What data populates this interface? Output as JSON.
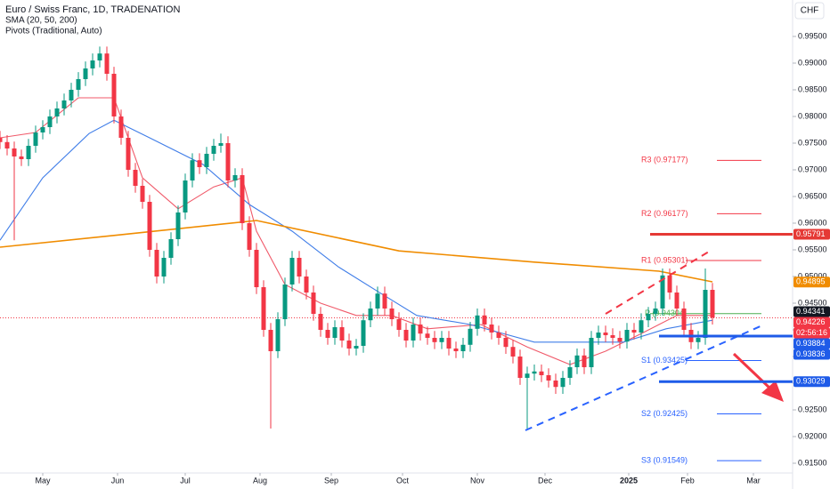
{
  "chart_data": {
    "type": "candlestick",
    "title": "Euro / Swiss Franc, 1D, TRADENATION",
    "indicators": [
      "SMA (20, 50, 200)",
      "Pivots (Traditional, Auto)"
    ],
    "currency": "CHF",
    "up_color": "#089981",
    "down_color": "#f23645",
    "xlim": [
      0,
      222.5
    ],
    "ylim": [
      0.91317,
      1.00183
    ],
    "xticks": [
      {
        "value": 12,
        "label": "May"
      },
      {
        "value": 33,
        "label": "Jun"
      },
      {
        "value": 52,
        "label": "Jul"
      },
      {
        "value": 73,
        "label": "Aug"
      },
      {
        "value": 93,
        "label": "Sep"
      },
      {
        "value": 113,
        "label": "Oct"
      },
      {
        "value": 134,
        "label": "Nov"
      },
      {
        "value": 153,
        "label": "Dec"
      },
      {
        "value": 176.5,
        "label": "2025"
      },
      {
        "value": 193,
        "label": "Feb"
      },
      {
        "value": 211.5,
        "label": "Mar"
      }
    ],
    "yticks": [
      {
        "value": 0.995,
        "label": "0.99500"
      },
      {
        "value": 0.99,
        "label": "0.99000"
      },
      {
        "value": 0.985,
        "label": "0.98500"
      },
      {
        "value": 0.98,
        "label": "0.98000"
      },
      {
        "value": 0.975,
        "label": "0.97500"
      },
      {
        "value": 0.97,
        "label": "0.97000"
      },
      {
        "value": 0.965,
        "label": "0.96500"
      },
      {
        "value": 0.96,
        "label": "0.96000"
      },
      {
        "value": 0.955,
        "label": "0.95500"
      },
      {
        "value": 0.95,
        "label": "0.95000"
      },
      {
        "value": 0.945,
        "label": "0.94500"
      },
      {
        "value": 0.94,
        "label": "0.94000"
      },
      {
        "value": 0.935,
        "label": "0.93500"
      },
      {
        "value": 0.93,
        "label": "0.93000"
      },
      {
        "value": 0.925,
        "label": "0.92500"
      },
      {
        "value": 0.92,
        "label": "0.92000"
      },
      {
        "value": 0.915,
        "label": "0.91500"
      }
    ],
    "x": [
      0,
      2,
      4,
      6,
      8,
      10,
      12,
      14,
      16,
      18,
      20,
      22,
      24,
      26,
      28,
      30,
      32,
      34,
      36,
      38,
      40,
      42,
      44,
      46,
      48,
      50,
      52,
      54,
      56,
      58,
      60,
      62,
      64,
      66,
      68,
      70,
      72,
      74,
      76,
      78,
      80,
      82,
      84,
      86,
      88,
      90,
      92,
      94,
      96,
      98,
      100,
      102,
      104,
      106,
      108,
      110,
      112,
      114,
      116,
      118,
      120,
      122,
      124,
      126,
      128,
      130,
      132,
      134,
      136,
      138,
      140,
      142,
      144,
      146,
      148,
      150,
      152,
      154,
      156,
      158,
      160,
      162,
      164,
      166,
      168,
      170,
      172,
      174,
      176,
      178,
      180,
      182,
      184,
      186,
      188,
      190,
      192,
      194,
      196,
      198,
      200
    ],
    "ohlc": [
      [
        0.976,
        0.9773,
        0.9739,
        0.9752
      ],
      [
        0.9752,
        0.9765,
        0.9727,
        0.974
      ],
      [
        0.974,
        0.9753,
        0.9568,
        0.9725
      ],
      [
        0.9725,
        0.9738,
        0.9707,
        0.972
      ],
      [
        0.972,
        0.9758,
        0.9707,
        0.9745
      ],
      [
        0.9745,
        0.9783,
        0.9732,
        0.977
      ],
      [
        0.977,
        0.9793,
        0.9757,
        0.978
      ],
      [
        0.978,
        0.9813,
        0.9767,
        0.98
      ],
      [
        0.98,
        0.9828,
        0.9787,
        0.9815
      ],
      [
        0.9815,
        0.9843,
        0.9802,
        0.983
      ],
      [
        0.983,
        0.9863,
        0.9817,
        0.985
      ],
      [
        0.985,
        0.9883,
        0.9837,
        0.987
      ],
      [
        0.987,
        0.9903,
        0.9857,
        0.989
      ],
      [
        0.989,
        0.9918,
        0.9877,
        0.9905
      ],
      [
        0.9905,
        0.9931,
        0.9892,
        0.9918
      ],
      [
        0.9918,
        0.9931,
        0.9867,
        0.988
      ],
      [
        0.988,
        0.9893,
        0.9787,
        0.98
      ],
      [
        0.98,
        0.9813,
        0.9747,
        0.976
      ],
      [
        0.976,
        0.9773,
        0.9687,
        0.97
      ],
      [
        0.97,
        0.9713,
        0.9657,
        0.967
      ],
      [
        0.967,
        0.9683,
        0.9627,
        0.964
      ],
      [
        0.964,
        0.9653,
        0.9537,
        0.955
      ],
      [
        0.955,
        0.9563,
        0.9487,
        0.95
      ],
      [
        0.95,
        0.9548,
        0.9487,
        0.9535
      ],
      [
        0.9535,
        0.9583,
        0.9522,
        0.957
      ],
      [
        0.957,
        0.9633,
        0.9557,
        0.962
      ],
      [
        0.962,
        0.9693,
        0.9607,
        0.968
      ],
      [
        0.968,
        0.9731,
        0.9667,
        0.9718
      ],
      [
        0.9718,
        0.9731,
        0.9692,
        0.9705
      ],
      [
        0.9705,
        0.9743,
        0.9692,
        0.973
      ],
      [
        0.973,
        0.9758,
        0.9717,
        0.9745
      ],
      [
        0.9745,
        0.9768,
        0.9732,
        0.975
      ],
      [
        0.975,
        0.9763,
        0.9667,
        0.968
      ],
      [
        0.968,
        0.9703,
        0.9667,
        0.969
      ],
      [
        0.969,
        0.9703,
        0.9587,
        0.96
      ],
      [
        0.96,
        0.9613,
        0.9537,
        0.955
      ],
      [
        0.955,
        0.9563,
        0.9467,
        0.948
      ],
      [
        0.948,
        0.9493,
        0.9387,
        0.94
      ],
      [
        0.94,
        0.9413,
        0.9215,
        0.936
      ],
      [
        0.936,
        0.9433,
        0.9347,
        0.942
      ],
      [
        0.942,
        0.9498,
        0.9407,
        0.9485
      ],
      [
        0.9485,
        0.9548,
        0.9472,
        0.9535
      ],
      [
        0.9535,
        0.9548,
        0.9487,
        0.95
      ],
      [
        0.95,
        0.9513,
        0.9457,
        0.947
      ],
      [
        0.947,
        0.9483,
        0.9417,
        0.943
      ],
      [
        0.943,
        0.9443,
        0.9387,
        0.94
      ],
      [
        0.94,
        0.9413,
        0.9372,
        0.9385
      ],
      [
        0.9385,
        0.9418,
        0.9372,
        0.9405
      ],
      [
        0.9405,
        0.9418,
        0.9367,
        0.938
      ],
      [
        0.938,
        0.9393,
        0.9352,
        0.9365
      ],
      [
        0.9365,
        0.9383,
        0.9352,
        0.937
      ],
      [
        0.937,
        0.9431,
        0.9357,
        0.9418
      ],
      [
        0.9418,
        0.9453,
        0.9405,
        0.944
      ],
      [
        0.944,
        0.9481,
        0.9427,
        0.9468
      ],
      [
        0.9468,
        0.9481,
        0.9427,
        0.944
      ],
      [
        0.944,
        0.9453,
        0.9407,
        0.942
      ],
      [
        0.942,
        0.9433,
        0.9387,
        0.94
      ],
      [
        0.94,
        0.9413,
        0.9367,
        0.938
      ],
      [
        0.938,
        0.9423,
        0.9367,
        0.941
      ],
      [
        0.941,
        0.9423,
        0.938,
        0.9393
      ],
      [
        0.9393,
        0.9406,
        0.9372,
        0.9385
      ],
      [
        0.9385,
        0.9398,
        0.9364,
        0.9377
      ],
      [
        0.9377,
        0.9398,
        0.9364,
        0.9385
      ],
      [
        0.9385,
        0.9398,
        0.9352,
        0.9365
      ],
      [
        0.9365,
        0.9378,
        0.9347,
        0.936
      ],
      [
        0.936,
        0.9385,
        0.9347,
        0.9372
      ],
      [
        0.9372,
        0.9415,
        0.9359,
        0.9402
      ],
      [
        0.9402,
        0.944,
        0.9389,
        0.9427
      ],
      [
        0.9427,
        0.944,
        0.9397,
        0.941
      ],
      [
        0.941,
        0.9423,
        0.9382,
        0.9395
      ],
      [
        0.9395,
        0.9408,
        0.9372,
        0.9385
      ],
      [
        0.9385,
        0.9398,
        0.9355,
        0.9368
      ],
      [
        0.9368,
        0.9381,
        0.9337,
        0.935
      ],
      [
        0.935,
        0.9363,
        0.9297,
        0.931
      ],
      [
        0.931,
        0.9331,
        0.9215,
        0.9318
      ],
      [
        0.9318,
        0.9335,
        0.9305,
        0.9322
      ],
      [
        0.9322,
        0.9335,
        0.9302,
        0.9315
      ],
      [
        0.9315,
        0.9328,
        0.9292,
        0.9305
      ],
      [
        0.9305,
        0.9318,
        0.928,
        0.9293
      ],
      [
        0.9293,
        0.9323,
        0.928,
        0.931
      ],
      [
        0.931,
        0.9343,
        0.9297,
        0.933
      ],
      [
        0.933,
        0.9365,
        0.9317,
        0.9352
      ],
      [
        0.9352,
        0.9365,
        0.9317,
        0.933
      ],
      [
        0.933,
        0.9398,
        0.9317,
        0.9385
      ],
      [
        0.9385,
        0.9408,
        0.9372,
        0.9395
      ],
      [
        0.9395,
        0.9408,
        0.9377,
        0.939
      ],
      [
        0.939,
        0.9403,
        0.9372,
        0.9385
      ],
      [
        0.9385,
        0.9398,
        0.9365,
        0.9378
      ],
      [
        0.9378,
        0.9413,
        0.9365,
        0.94
      ],
      [
        0.94,
        0.9413,
        0.9382,
        0.9395
      ],
      [
        0.9395,
        0.9431,
        0.9382,
        0.9418
      ],
      [
        0.9418,
        0.9443,
        0.9405,
        0.943
      ],
      [
        0.943,
        0.9453,
        0.9417,
        0.944
      ],
      [
        0.944,
        0.9515,
        0.9427,
        0.9502
      ],
      [
        0.9502,
        0.9515,
        0.9457,
        0.947
      ],
      [
        0.947,
        0.9483,
        0.9427,
        0.944
      ],
      [
        0.944,
        0.9453,
        0.9387,
        0.94
      ],
      [
        0.94,
        0.9413,
        0.9364,
        0.9377
      ],
      [
        0.9377,
        0.9398,
        0.9364,
        0.9385
      ],
      [
        0.9385,
        0.9515,
        0.9372,
        0.9475
      ],
      [
        0.9475,
        0.9488,
        0.941,
        0.9423
      ]
    ],
    "sma": [
      {
        "color": "#f05a6a",
        "x": [
          0,
          10,
          22,
          32,
          40,
          50,
          60,
          68,
          72,
          80,
          90,
          100,
          110,
          120,
          135,
          148,
          160,
          170,
          180,
          190,
          200
        ],
        "values": [
          0.976,
          0.977,
          0.9835,
          0.9835,
          0.9685,
          0.9627,
          0.9668,
          0.9685,
          0.9585,
          0.9485,
          0.945,
          0.9427,
          0.9427,
          0.9402,
          0.941,
          0.9368,
          0.9335,
          0.936,
          0.9393,
          0.9427,
          0.9427
        ]
      },
      {
        "color": "#3f7de8",
        "x": [
          0,
          12,
          25,
          32,
          42,
          57,
          70,
          82,
          95,
          107,
          117,
          132,
          150,
          162,
          175,
          187,
          200
        ],
        "values": [
          0.9568,
          0.9685,
          0.9768,
          0.9793,
          0.976,
          0.971,
          0.9635,
          0.9585,
          0.9518,
          0.9468,
          0.9427,
          0.941,
          0.9377,
          0.9377,
          0.9377,
          0.9402,
          0.9418
        ]
      },
      {
        "color": "#f08c00",
        "x": [
          0,
          32,
          72,
          112,
          150,
          185,
          200
        ],
        "values": [
          0.9555,
          0.9577,
          0.9605,
          0.9548,
          0.9527,
          0.951,
          0.949
        ]
      }
    ],
    "pivots": [
      {
        "label": "R3 (0.97177)",
        "value": 0.97177,
        "color": "#f23645"
      },
      {
        "label": "R2 (0.96177)",
        "value": 0.96177,
        "color": "#f23645"
      },
      {
        "label": "R1 (0.95301)",
        "value": 0.95301,
        "color": "#f23645"
      },
      {
        "label": "P (0.94304)",
        "value": 0.94304,
        "color": "#4caf50"
      },
      {
        "label": "S1 (0.93425)",
        "value": 0.93425,
        "color": "#2962ff"
      },
      {
        "label": "S2 (0.92425)",
        "value": 0.92425,
        "color": "#2962ff"
      },
      {
        "label": "S3 (0.91549)",
        "value": 0.91549,
        "color": "#2962ff"
      }
    ],
    "price_tags": [
      {
        "value": 0.95791,
        "color": "#e53935",
        "line": true
      },
      {
        "value": 0.94895,
        "color": "#f08c00",
        "line": false
      },
      {
        "value": 0.94341,
        "color": "#131722",
        "line": false
      },
      {
        "value": 0.94226,
        "color": "#f23645",
        "line": false
      },
      {
        "value": 0.93884,
        "color": "#1e5be8",
        "line": true
      },
      {
        "value": 0.93836,
        "color": "#1e5be8",
        "line": false
      },
      {
        "value": 0.93029,
        "color": "#1e5be8",
        "line": true
      }
    ],
    "last_price": 0.94226,
    "countdown": "02:56:16"
  }
}
